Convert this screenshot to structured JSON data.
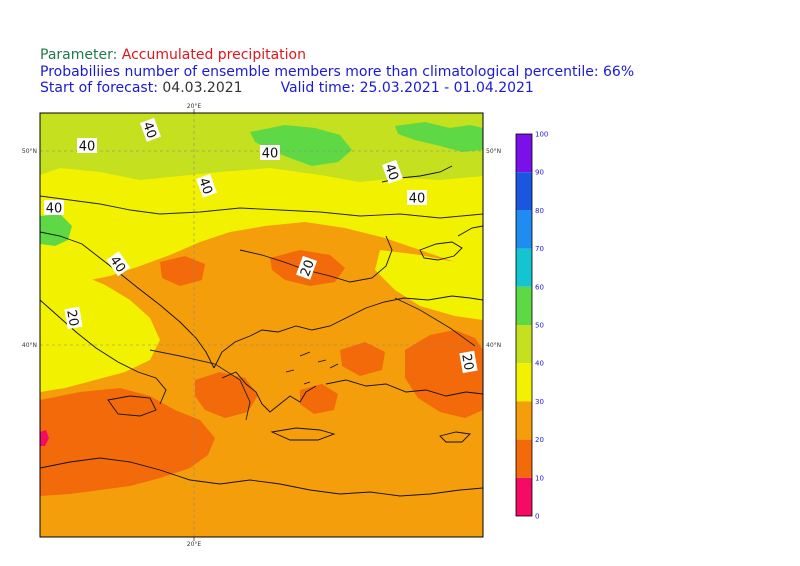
{
  "header": {
    "parameter_label": "Parameter:",
    "parameter_value": "Accumulated precipitation",
    "subtitle": "Probabiliies number of ensemble members more than climatological percentile: 66%",
    "start_label": "Start of forecast:",
    "start_value": "04.03.2021",
    "valid_label": "Valid time:",
    "valid_value": "25.03.2021 - 01.04.2021"
  },
  "axes": {
    "lon_top": "20°E",
    "lon_bottom": "20°E",
    "lat_50_left": "50°N",
    "lat_50_right": "50°N",
    "lat_40_left": "40°N",
    "lat_40_right": "40°N"
  },
  "contour_labels": [
    "40",
    "40",
    "40",
    "40",
    "40",
    "40",
    "40",
    "40",
    "20",
    "20",
    "20"
  ],
  "colorbar": {
    "ticks": [
      "100",
      "90",
      "80",
      "70",
      "60",
      "50",
      "40",
      "30",
      "20",
      "10",
      "0"
    ],
    "bins": [
      {
        "range": "90-100",
        "color": "#7b10e8"
      },
      {
        "range": "80-90",
        "color": "#1a56e0"
      },
      {
        "range": "70-80",
        "color": "#1e8cf0"
      },
      {
        "range": "60-70",
        "color": "#14c4d0"
      },
      {
        "range": "50-60",
        "color": "#5fd846"
      },
      {
        "range": "40-50",
        "color": "#c4e01e"
      },
      {
        "range": "30-40",
        "color": "#f2f200"
      },
      {
        "range": "20-30",
        "color": "#f59e0b"
      },
      {
        "range": "10-20",
        "color": "#f26a0a"
      },
      {
        "range": "0-10",
        "color": "#f50a64"
      }
    ]
  },
  "map_colors": {
    "p40_50": "#c4e01e",
    "p50_60": "#5fd846",
    "p30_40": "#f2f200",
    "p20_30": "#f59e0b",
    "p10_20": "#f26a0a",
    "p0_10": "#f50a64"
  }
}
